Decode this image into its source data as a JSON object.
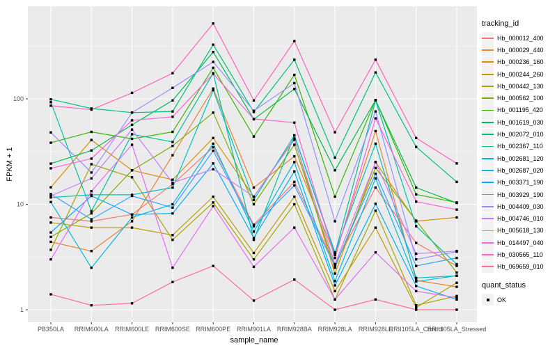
{
  "figure": {
    "background": "#FFFFFF",
    "panel_background": "#EBEBEB",
    "grid_color": "#FFFFFF",
    "tick_color": "#333333",
    "tick_label_color": "#4D4D4D",
    "point_color": "#000000"
  },
  "chart_data": {
    "type": "line",
    "title": "",
    "xlabel": "sample_name",
    "ylabel": "FPKM + 1",
    "y_scale": "log10",
    "y_ticks": [
      1,
      10,
      100
    ],
    "y_tick_labels": [
      "1",
      "10",
      "100"
    ],
    "y_minor_ticks": [
      3.162,
      31.62,
      316.2
    ],
    "ylim": [
      0.77,
      740
    ],
    "grid": true,
    "legend_position": "right",
    "legend_title": "tracking_id",
    "point_marker": "black-square",
    "categories": [
      "PB350LA",
      "RRIM600LA",
      "RRIM600LE",
      "RRIM600SE",
      "RRIM600PE",
      "RRIM901LA",
      "RRIM928BA",
      "RRIM928LA",
      "RRIM928LE",
      "RRII105LA_Control",
      "RRII105LA_Stressed"
    ],
    "series": [
      {
        "name": "Hb_000012_400",
        "color": "#F8766D",
        "values": [
          7.5,
          6.9,
          8.0,
          15.5,
          34.7,
          6.4,
          16.3,
          2.7,
          14.4,
          4.3,
          2.6
        ]
      },
      {
        "name": "Hb_000029_440",
        "color": "#EA8331",
        "values": [
          4.4,
          3.6,
          6.9,
          29.2,
          125,
          14.4,
          28.5,
          3.3,
          49.4,
          1.9,
          1.65
        ]
      },
      {
        "name": "Hb_000236_160",
        "color": "#D89000",
        "values": [
          14.5,
          40.7,
          21.0,
          17.1,
          42.5,
          11.8,
          42.0,
          2.2,
          25.1,
          6.9,
          7.5
        ]
      },
      {
        "name": "Hb_000244_260",
        "color": "#C09B00",
        "values": [
          6.7,
          6.0,
          6.0,
          5.1,
          11.8,
          3.45,
          11.8,
          1.5,
          6.0,
          1.05,
          1.8
        ]
      },
      {
        "name": "Hb_000442_130",
        "color": "#A3A500",
        "values": [
          3.7,
          24.0,
          18.0,
          4.6,
          10.4,
          3.0,
          10.0,
          1.25,
          8.7,
          1.1,
          1.35
        ]
      },
      {
        "name": "Hb_000562_100",
        "color": "#7CAE00",
        "values": [
          4.9,
          8.2,
          21.0,
          35.8,
          74,
          10.0,
          36.7,
          2.5,
          22.1,
          7.0,
          2.25
        ]
      },
      {
        "name": "Hb_001195_420",
        "color": "#39B600",
        "values": [
          38.3,
          48.6,
          41.7,
          48.6,
          197,
          43.9,
          169,
          11.8,
          97.5,
          12.4,
          10.4
        ]
      },
      {
        "name": "Hb_001619_030",
        "color": "#00BB4E",
        "values": [
          24.3,
          32.4,
          56.6,
          96.6,
          278,
          64,
          124,
          21.0,
          97.0,
          14.4,
          10.3
        ]
      },
      {
        "name": "Hb_002072_010",
        "color": "#00BF7D",
        "values": [
          99,
          81,
          74,
          76,
          326,
          75,
          235,
          27.7,
          178,
          35.0,
          16.3
        ]
      },
      {
        "name": "Hb_002367_110",
        "color": "#00C1A3",
        "values": [
          93,
          8.6,
          46.1,
          39.0,
          175,
          4.6,
          45.0,
          3.4,
          96.6,
          6.2,
          2.7
        ]
      },
      {
        "name": "Hb_002681_120",
        "color": "#00BFC4",
        "values": [
          11.6,
          12.3,
          12.3,
          14.4,
          121,
          11.0,
          45.0,
          3.5,
          37.5,
          2.0,
          2.1
        ]
      },
      {
        "name": "Hb_002687_020",
        "color": "#00BAE0",
        "values": [
          10.5,
          2.5,
          7.5,
          10.0,
          37.5,
          5.5,
          25.1,
          1.87,
          17.6,
          1.85,
          2.1
        ]
      },
      {
        "name": "Hb_003371_190",
        "color": "#00B0F6",
        "values": [
          5.4,
          12.0,
          8.0,
          8.2,
          24.4,
          4.8,
          20.5,
          1.7,
          10.1,
          1.68,
          1.25
        ]
      },
      {
        "name": "Hb_003929_190",
        "color": "#35A2FF",
        "values": [
          12.5,
          7.2,
          12.0,
          9.3,
          32.2,
          6.2,
          15.1,
          2.6,
          19.5,
          2.6,
          3.1
        ]
      },
      {
        "name": "Hb_004409_030",
        "color": "#9590FF",
        "values": [
          48.0,
          20.0,
          74.0,
          127,
          224,
          77,
          141,
          6.9,
          75.9,
          3.0,
          3.55
        ]
      },
      {
        "name": "Hb_004746_010",
        "color": "#C77CFF",
        "values": [
          12.0,
          17.6,
          51.1,
          16.0,
          21.5,
          11.8,
          41.0,
          2.7,
          25.1,
          3.4,
          3.6
        ]
      },
      {
        "name": "Hb_005618_130",
        "color": "#E76BF3",
        "values": [
          3.0,
          13.3,
          36.7,
          2.5,
          9.6,
          2.55,
          6.0,
          1.25,
          3.5,
          1.5,
          1.3
        ]
      },
      {
        "name": "Hb_014497_040",
        "color": "#FA62DB",
        "values": [
          21.9,
          27.1,
          62.5,
          67.6,
          173,
          64.5,
          59.5,
          3.1,
          65.2,
          10.6,
          8.9
        ]
      },
      {
        "name": "Hb_030565_110",
        "color": "#FF62BC",
        "values": [
          86,
          79,
          114,
          175,
          519,
          96.6,
          353,
          48.2,
          235,
          42.5,
          24.4
        ]
      },
      {
        "name": "Hb_069659_010",
        "color": "#FF6A98",
        "values": [
          1.4,
          1.1,
          1.15,
          1.83,
          2.6,
          1.22,
          1.93,
          1.0,
          1.25,
          1.0,
          1.0
        ]
      }
    ],
    "quant_legend": {
      "title": "quant_status",
      "items": [
        {
          "label": "OK",
          "marker": "black-square"
        }
      ]
    }
  }
}
